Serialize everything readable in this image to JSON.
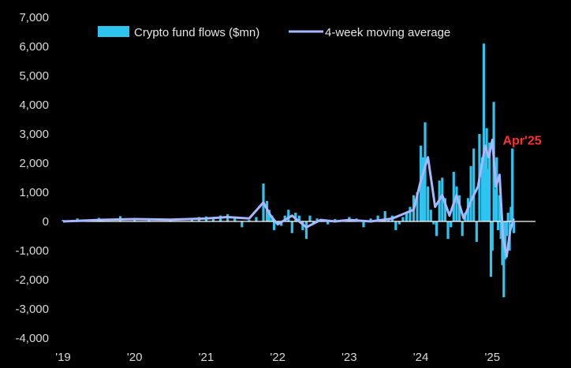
{
  "chart_data": {
    "type": "bar",
    "title": "",
    "xlabel": "",
    "ylabel": "",
    "ylim": [
      -4000,
      7000
    ],
    "y_ticks": [
      7000,
      6000,
      5000,
      4000,
      3000,
      2000,
      1000,
      0,
      -1000,
      -2000,
      -3000,
      -4000
    ],
    "y_tick_labels": [
      "7,000",
      "6,000",
      "5,000",
      "4,000",
      "3,000",
      "2,000",
      "1,000",
      "0",
      "-1,000",
      "-2,000",
      "-3,000",
      "-4,000"
    ],
    "x_ticks": [
      2019,
      2020,
      2021,
      2022,
      2023,
      2024,
      2025
    ],
    "x_tick_labels": [
      "'19",
      "'20",
      "'21",
      "'22",
      "'23",
      "'24",
      "'25"
    ],
    "xlim": [
      2019.0,
      2026.0
    ],
    "legend_position": "top",
    "colors": {
      "background": "#000000",
      "bars": "#2ec4f0",
      "average": "#a7b8ff",
      "zero_line": "#ffffff",
      "annotation": "#ff2f2f"
    },
    "annotation": {
      "text": "Apr'25",
      "x": 2025.3,
      "y": 2800
    },
    "series": [
      {
        "name": "Crypto fund flows ($mn)",
        "kind": "bar",
        "x": [
          2019.0,
          2019.2,
          2019.4,
          2019.5,
          2019.8,
          2020.0,
          2020.2,
          2020.5,
          2020.8,
          2020.9,
          2021.0,
          2021.1,
          2021.2,
          2021.3,
          2021.4,
          2021.5,
          2021.6,
          2021.7,
          2021.8,
          2021.85,
          2021.88,
          2021.92,
          2021.95,
          2022.0,
          2022.05,
          2022.1,
          2022.15,
          2022.2,
          2022.25,
          2022.3,
          2022.35,
          2022.4,
          2022.45,
          2022.5,
          2022.55,
          2022.6,
          2022.7,
          2022.8,
          2022.9,
          2023.0,
          2023.1,
          2023.2,
          2023.3,
          2023.4,
          2023.5,
          2023.55,
          2023.6,
          2023.65,
          2023.7,
          2023.75,
          2023.8,
          2023.85,
          2023.9,
          2023.95,
          2024.0,
          2024.03,
          2024.06,
          2024.1,
          2024.14,
          2024.18,
          2024.22,
          2024.26,
          2024.3,
          2024.34,
          2024.38,
          2024.42,
          2024.46,
          2024.5,
          2024.54,
          2024.58,
          2024.62,
          2024.66,
          2024.7,
          2024.74,
          2024.78,
          2024.82,
          2024.86,
          2024.88,
          2024.9,
          2024.92,
          2024.94,
          2024.96,
          2024.98,
          2025.0,
          2025.02,
          2025.04,
          2025.06,
          2025.08,
          2025.1,
          2025.12,
          2025.14,
          2025.16,
          2025.18,
          2025.2,
          2025.22,
          2025.24,
          2025.26,
          2025.28,
          2025.3
        ],
        "values": [
          50,
          100,
          50,
          120,
          180,
          80,
          70,
          90,
          120,
          150,
          170,
          120,
          200,
          250,
          100,
          -200,
          50,
          150,
          1300,
          700,
          400,
          200,
          -300,
          -100,
          -150,
          200,
          400,
          -400,
          300,
          200,
          -300,
          -600,
          200,
          -100,
          100,
          50,
          -100,
          80,
          50,
          150,
          100,
          -200,
          100,
          200,
          350,
          100,
          200,
          -300,
          -100,
          150,
          300,
          500,
          900,
          1000,
          2600,
          2200,
          3400,
          1200,
          400,
          -100,
          -500,
          1400,
          1500,
          800,
          -600,
          -200,
          1700,
          1200,
          900,
          -500,
          300,
          800,
          1900,
          2500,
          -700,
          3000,
          2200,
          6100,
          2400,
          3200,
          1800,
          2700,
          -1900,
          -1000,
          4100,
          1100,
          2200,
          -300,
          900,
          -600,
          -1500,
          -2600,
          -1300,
          -500,
          300,
          -1000,
          500,
          2500,
          -400
        ]
      },
      {
        "name": "4-week moving average",
        "kind": "line",
        "x": [
          2019.0,
          2019.5,
          2020.0,
          2020.5,
          2021.0,
          2021.3,
          2021.6,
          2021.8,
          2021.9,
          2022.0,
          2022.2,
          2022.4,
          2022.6,
          2022.8,
          2023.0,
          2023.3,
          2023.6,
          2023.9,
          2024.0,
          2024.1,
          2024.2,
          2024.3,
          2024.4,
          2024.5,
          2024.6,
          2024.7,
          2024.8,
          2024.9,
          2024.95,
          2025.0,
          2025.05,
          2025.1,
          2025.15,
          2025.2,
          2025.25,
          2025.3
        ],
        "values": [
          0,
          50,
          80,
          60,
          100,
          150,
          100,
          650,
          200,
          -100,
          200,
          -200,
          50,
          0,
          50,
          0,
          100,
          400,
          1400,
          2200,
          500,
          900,
          200,
          900,
          100,
          700,
          1200,
          2600,
          2200,
          2800,
          1200,
          1600,
          -600,
          -1200,
          -300,
          100
        ]
      }
    ]
  }
}
